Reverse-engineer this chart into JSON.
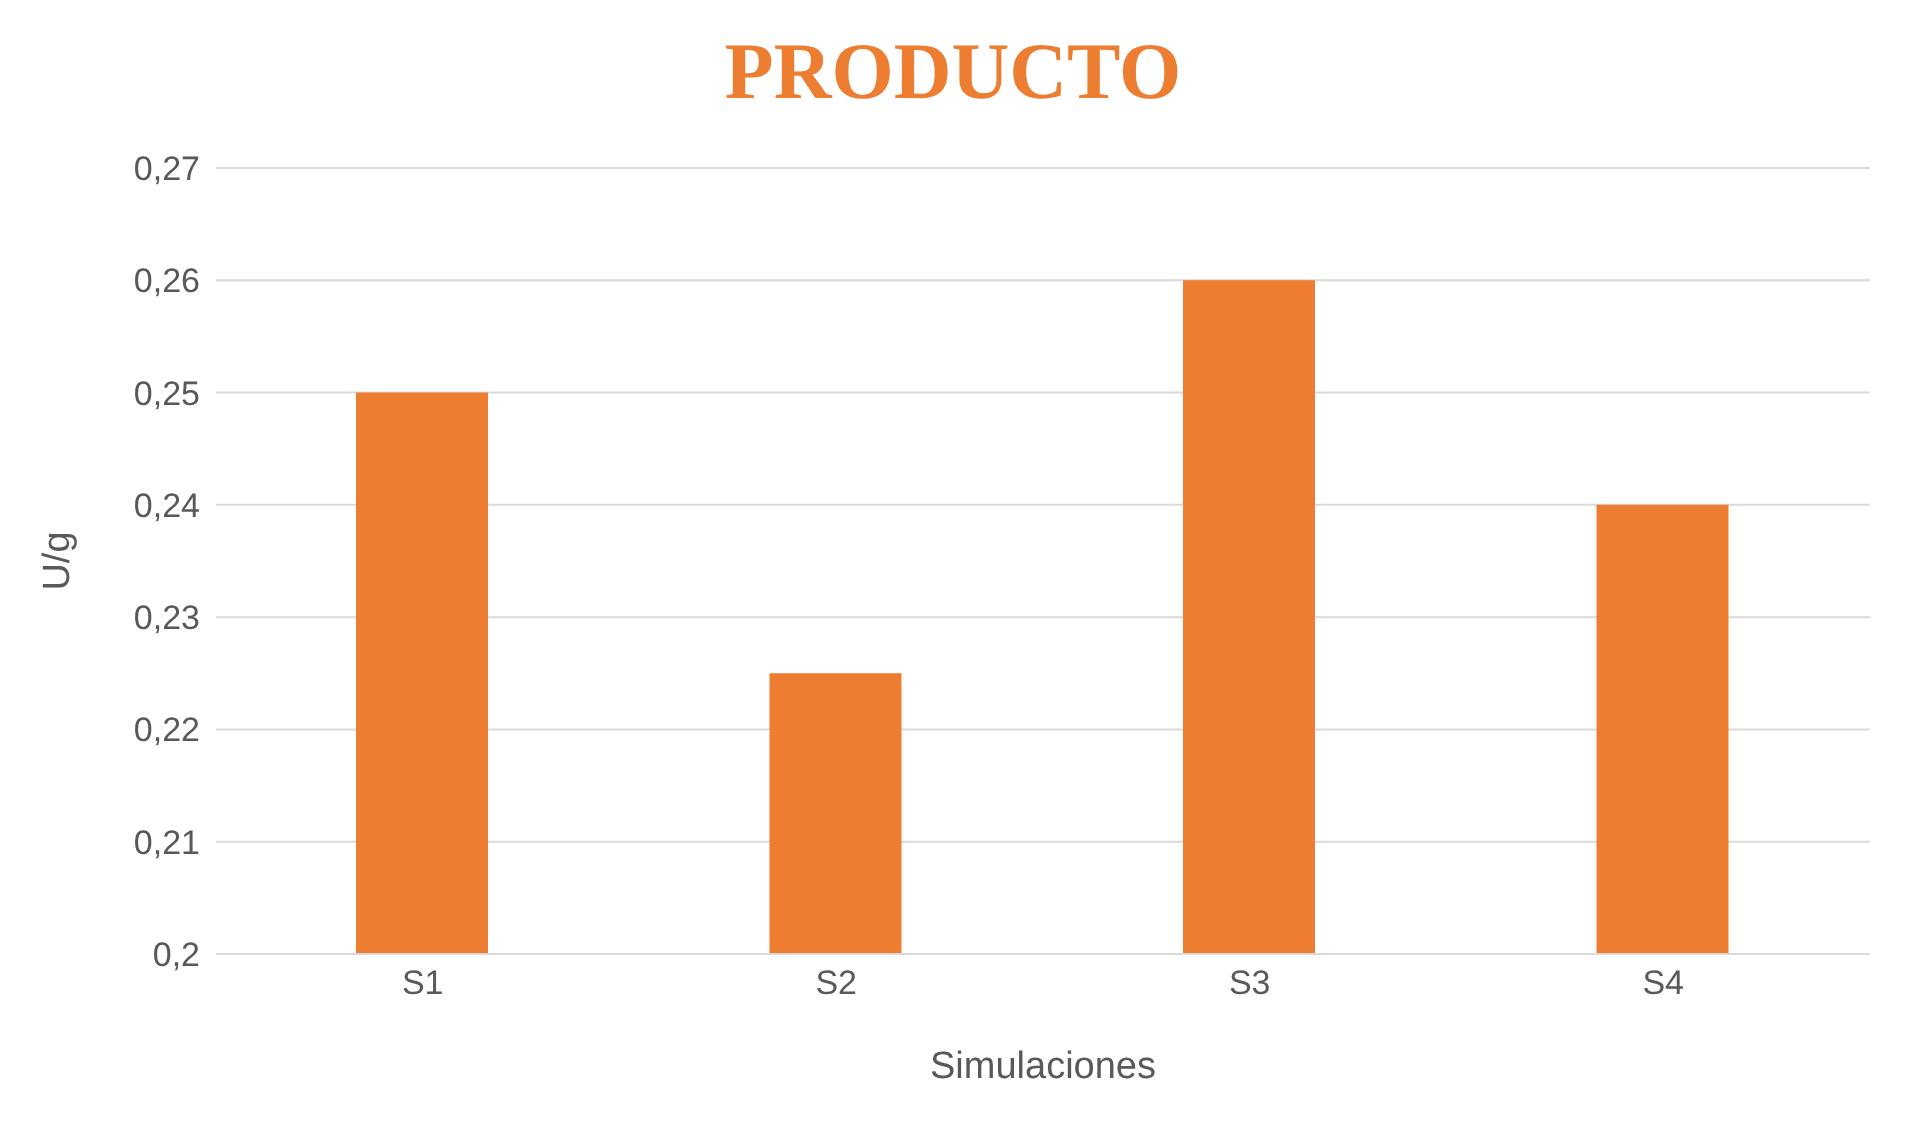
{
  "chart_data": {
    "type": "bar",
    "title": "PRODUCTO",
    "xlabel": "Simulaciones",
    "ylabel": "U/g",
    "categories": [
      "S1",
      "S2",
      "S3",
      "S4"
    ],
    "values": [
      0.25,
      0.225,
      0.26,
      0.24
    ],
    "color": "#ed7d31",
    "ylim": [
      0.2,
      0.27
    ],
    "yticks": [
      {
        "value": 0.2,
        "label": "0,2"
      },
      {
        "value": 0.21,
        "label": "0,21"
      },
      {
        "value": 0.22,
        "label": "0,22"
      },
      {
        "value": 0.23,
        "label": "0,23"
      },
      {
        "value": 0.24,
        "label": "0,24"
      },
      {
        "value": 0.25,
        "label": "0,25"
      },
      {
        "value": 0.26,
        "label": "0,26"
      },
      {
        "value": 0.27,
        "label": "0,27"
      }
    ],
    "grid": "y",
    "legend": false
  }
}
